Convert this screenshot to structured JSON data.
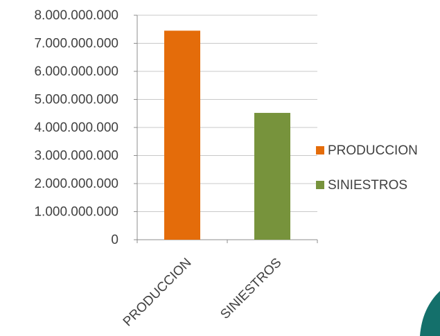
{
  "chart_data": {
    "type": "bar",
    "categories": [
      "PRODUCCION",
      "SINIESTROS"
    ],
    "values": [
      7450000000,
      4520000000
    ],
    "colors": [
      "#e46c0a",
      "#77933c"
    ],
    "ylim": [
      0,
      8000000000
    ],
    "yticks": [
      0,
      1000000000,
      2000000000,
      3000000000,
      4000000000,
      5000000000,
      6000000000,
      7000000000,
      8000000000
    ],
    "ytick_labels": [
      "0",
      "1.000.000.000",
      "2.000.000.000",
      "3.000.000.000",
      "4.000.000.000",
      "5.000.000.000",
      "6.000.000.000",
      "7.000.000.000",
      "8.000.000.000"
    ],
    "grid": true,
    "legend": {
      "position": "right",
      "entries": [
        {
          "label": "PRODUCCION",
          "color": "#e46c0a"
        },
        {
          "label": "SINIESTROS",
          "color": "#77933c"
        }
      ]
    },
    "title": "",
    "xlabel": "",
    "ylabel": ""
  },
  "decoration": {
    "corner_shape_color": "#14706b",
    "icon": "teal-corner-shape"
  }
}
